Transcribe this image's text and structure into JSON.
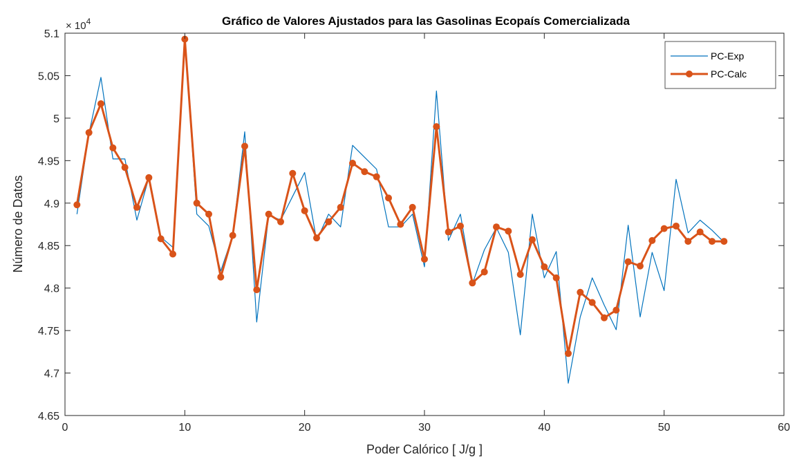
{
  "chart_data": {
    "type": "line",
    "title": "Gráfico de Valores Ajustados para las Gasolinas Ecopaís Comercializada",
    "xlabel": "Poder Calórico [ J/g ]",
    "ylabel": "Número de Datos",
    "xlim": [
      0,
      60
    ],
    "ylim": [
      46500,
      51000
    ],
    "xticks": [
      0,
      10,
      20,
      30,
      40,
      50,
      60
    ],
    "yticks": [
      46500,
      47000,
      47500,
      48000,
      48500,
      49000,
      49500,
      50000,
      50500,
      51000
    ],
    "ytick_labels": [
      "4.65",
      "4.7",
      "4.75",
      "4.8",
      "4.85",
      "4.9",
      "4.95",
      "5",
      "5.05",
      "5.1"
    ],
    "y_exponent_base": "× 10",
    "y_exponent_power": "4",
    "grid": false,
    "legend_position": "top-right",
    "x": [
      1,
      2,
      3,
      4,
      5,
      6,
      7,
      8,
      9,
      10,
      11,
      12,
      13,
      14,
      15,
      16,
      17,
      18,
      19,
      20,
      21,
      22,
      23,
      24,
      25,
      26,
      27,
      28,
      29,
      30,
      31,
      32,
      33,
      34,
      35,
      36,
      37,
      38,
      39,
      40,
      41,
      42,
      43,
      44,
      45,
      46,
      47,
      48,
      49,
      50,
      51,
      52,
      53,
      54,
      55
    ],
    "series": [
      {
        "name": "PC-Exp",
        "color": "#0072BD",
        "markers": false,
        "values": [
          48870,
          49820,
          50480,
          49520,
          49520,
          48800,
          49300,
          48600,
          48480,
          50930,
          48870,
          48730,
          48200,
          48620,
          49840,
          47600,
          48860,
          48800,
          49080,
          49360,
          48560,
          48870,
          48720,
          49680,
          49540,
          49400,
          48720,
          48720,
          48870,
          48250,
          50320,
          48560,
          48870,
          48050,
          48450,
          48710,
          48420,
          47450,
          48870,
          48120,
          48430,
          46880,
          47660,
          48120,
          47800,
          47510,
          48740,
          47660,
          48420,
          47970,
          49280,
          48650,
          48800,
          48680,
          48540
        ]
      },
      {
        "name": "PC-Calc",
        "color": "#D95319",
        "markers": true,
        "values": [
          48980,
          49830,
          50170,
          49650,
          49420,
          48950,
          49300,
          48580,
          48400,
          50930,
          49000,
          48870,
          48130,
          48620,
          49670,
          47980,
          48870,
          48780,
          49350,
          48910,
          48590,
          48780,
          48950,
          49470,
          49370,
          49310,
          49060,
          48750,
          48950,
          48340,
          49900,
          48660,
          48730,
          48060,
          48190,
          48720,
          48670,
          48160,
          48570,
          48250,
          48120,
          47230,
          47950,
          47830,
          47650,
          47740,
          48310,
          48260,
          48560,
          48700,
          48730,
          48550,
          48660,
          48550,
          48550
        ]
      }
    ]
  }
}
